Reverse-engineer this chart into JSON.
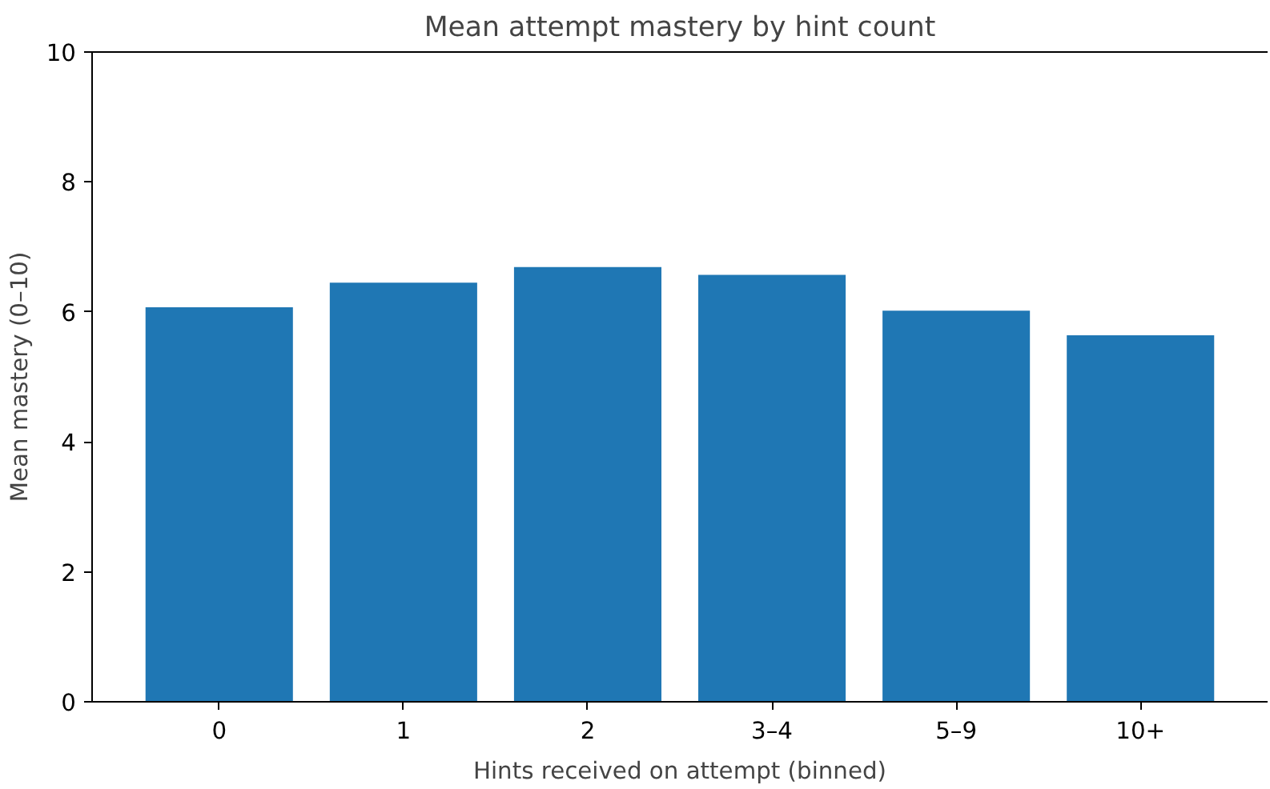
{
  "chart_data": {
    "type": "bar",
    "title": "Mean attempt mastery by hint count",
    "xlabel": "Hints received on attempt (binned)",
    "ylabel": "Mean mastery (0–10)",
    "categories": [
      "0",
      "1",
      "2",
      "3–4",
      "5–9",
      "10+"
    ],
    "values": [
      6.07,
      6.45,
      6.69,
      6.57,
      6.02,
      5.64
    ],
    "color": "#1f77b4",
    "ylim": [
      0,
      10
    ],
    "yticks": [
      0,
      2,
      4,
      6,
      8,
      10
    ],
    "grid": false
  }
}
